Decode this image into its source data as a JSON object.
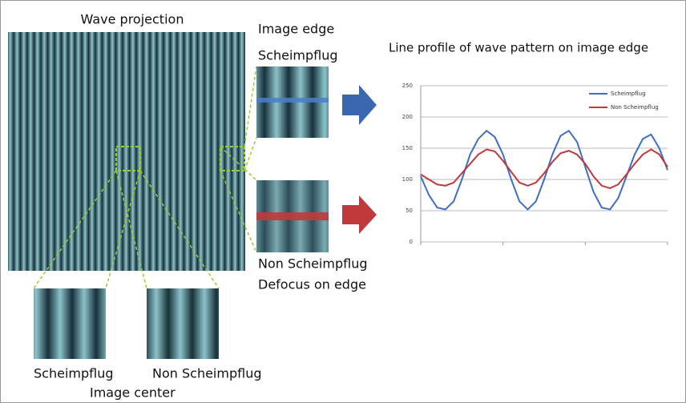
{
  "labels": {
    "wave_projection": "Wave projection",
    "image_edge": "Image edge",
    "scheimpflug_edge": "Scheimpflug",
    "non_scheimpflug_edge": "Non Scheimpflug",
    "defocus_on_edge": "Defocus on edge",
    "scheimpflug_center": "Scheimpflug",
    "non_scheimpflug_center": "Non Scheimpflug",
    "image_center": "Image center"
  },
  "chart_data": {
    "type": "line",
    "title": "Line profile of wave pattern on image edge",
    "x": [
      0,
      1,
      2,
      3,
      4,
      5,
      6,
      7,
      8,
      9,
      10,
      11,
      12,
      13,
      14,
      15,
      16,
      17,
      18,
      19,
      20,
      21,
      22,
      23,
      24,
      25,
      26,
      27,
      28,
      29,
      30
    ],
    "series": [
      {
        "name": "Scheimpflug",
        "color": "#3f6fbf",
        "values": [
          105,
          75,
          55,
          52,
          65,
          100,
          140,
          165,
          178,
          168,
          140,
          100,
          65,
          52,
          65,
          100,
          140,
          170,
          178,
          160,
          120,
          80,
          55,
          52,
          70,
          105,
          140,
          165,
          172,
          150,
          115
        ]
      },
      {
        "name": "Non Scheimpflug",
        "color": "#c0393b",
        "values": [
          108,
          100,
          92,
          90,
          95,
          110,
          125,
          140,
          148,
          145,
          130,
          112,
          95,
          90,
          95,
          110,
          128,
          142,
          146,
          140,
          125,
          105,
          90,
          86,
          92,
          108,
          125,
          140,
          148,
          140,
          120
        ]
      }
    ],
    "xlim": [
      0,
      30
    ],
    "ylim": [
      0,
      250
    ],
    "yticks": [
      0,
      50,
      100,
      150,
      200,
      250
    ],
    "grid": true,
    "legend": "top-right"
  }
}
